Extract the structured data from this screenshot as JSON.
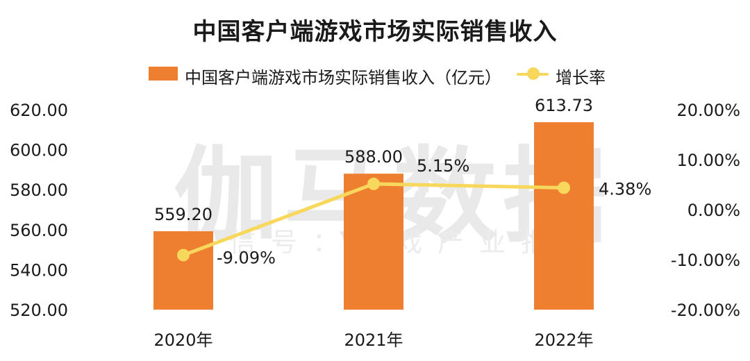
{
  "chart_data": {
    "type": "bar+line",
    "title": "中国客户端游戏市场实际销售收入",
    "categories": [
      "2020年",
      "2021年",
      "2022年"
    ],
    "series": [
      {
        "name": "中国客户端游戏市场实际销售收入（亿元）",
        "type": "bar",
        "axis": "left",
        "values": [
          559.2,
          588.0,
          613.73
        ],
        "labels": [
          "559.20",
          "588.00",
          "613.73"
        ],
        "color": "#ef7f30"
      },
      {
        "name": "增长率",
        "type": "line",
        "axis": "right",
        "values": [
          -9.09,
          5.15,
          4.38
        ],
        "labels": [
          "-9.09%",
          "5.15%",
          "4.38%"
        ],
        "color": "#f8d85c"
      }
    ],
    "left_axis": {
      "range": [
        520,
        620
      ],
      "ticks": [
        "520.00",
        "540.00",
        "560.00",
        "580.00",
        "600.00",
        "620.00"
      ]
    },
    "right_axis": {
      "range": [
        -20,
        20
      ],
      "ticks": [
        "-20.00%",
        "-10.00%",
        "0.00%",
        "10.00%",
        "20.00%"
      ]
    },
    "legend_position": "top",
    "grid": false
  },
  "watermark": {
    "main": "伽马数据",
    "sub": "微信号：游戏产业报告"
  }
}
